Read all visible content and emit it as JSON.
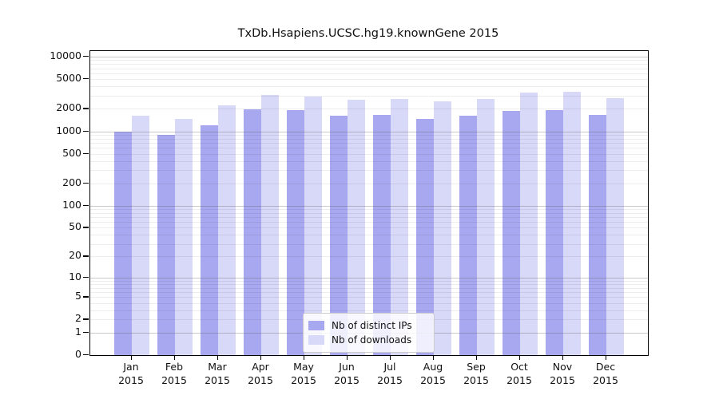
{
  "chart_data": {
    "type": "bar",
    "title": "TxDb.Hsapiens.UCSC.hg19.knownGene 2015",
    "categories": [
      "Jan 2015",
      "Feb 2015",
      "Mar 2015",
      "Apr 2015",
      "May 2015",
      "Jun 2015",
      "Jul 2015",
      "Aug 2015",
      "Sep 2015",
      "Oct 2015",
      "Nov 2015",
      "Dec 2015"
    ],
    "series": [
      {
        "name": "Nb of distinct IPs",
        "color": "#a8a8f0",
        "values": [
          1000,
          890,
          1200,
          1980,
          1900,
          1620,
          1660,
          1470,
          1620,
          1860,
          1930,
          1650
        ]
      },
      {
        "name": "Nb of downloads",
        "color": "#d8d8f8",
        "values": [
          1600,
          1460,
          2230,
          3050,
          2940,
          2650,
          2700,
          2540,
          2710,
          3280,
          3360,
          2780
        ]
      }
    ],
    "xlabel": "",
    "ylabel": "",
    "yscale": "log1p",
    "yticks": [
      10000,
      5000,
      2000,
      1000,
      500,
      200,
      100,
      50,
      20,
      10,
      5,
      2,
      1,
      0
    ],
    "ylim": [
      0,
      11800
    ],
    "grid": true,
    "legend": {
      "position": "lower-center",
      "entries": [
        "Nb of distinct IPs",
        "Nb of downloads"
      ]
    }
  }
}
